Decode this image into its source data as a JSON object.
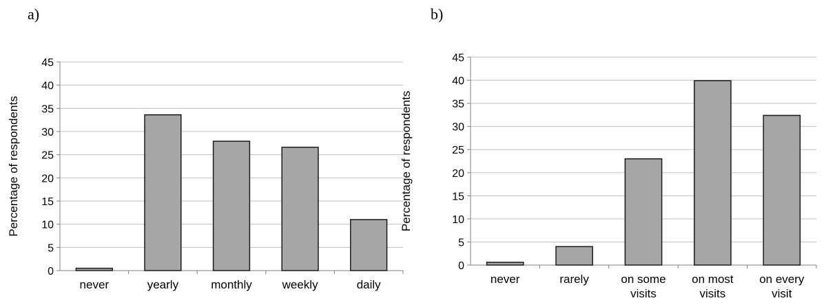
{
  "panel_labels": [
    "a)",
    "b)"
  ],
  "chart_data": [
    {
      "type": "bar",
      "ylabel": "Percentage of respondents",
      "xlabel": "",
      "ylim": [
        0,
        45
      ],
      "yticks": [
        0,
        5,
        10,
        15,
        20,
        25,
        30,
        35,
        40,
        45
      ],
      "grid": true,
      "legend": "none",
      "bar_color": "#a6a6a6",
      "categories": [
        [
          "never"
        ],
        [
          "yearly"
        ],
        [
          "monthly"
        ],
        [
          "weekly"
        ],
        [
          "daily"
        ]
      ],
      "values": [
        0.5,
        33.6,
        27.9,
        26.6,
        11
      ]
    },
    {
      "type": "bar",
      "ylabel": "Percentage of respondents",
      "xlabel": "",
      "ylim": [
        0,
        45
      ],
      "yticks": [
        0,
        5,
        10,
        15,
        20,
        25,
        30,
        35,
        40,
        45
      ],
      "grid": true,
      "legend": "none",
      "bar_color": "#a6a6a6",
      "categories": [
        [
          "never"
        ],
        [
          "rarely"
        ],
        [
          "on some",
          "visits"
        ],
        [
          "on most",
          "visits"
        ],
        [
          "on every",
          "visit"
        ]
      ],
      "values": [
        0.6,
        4,
        23,
        39.9,
        32.4
      ]
    }
  ]
}
